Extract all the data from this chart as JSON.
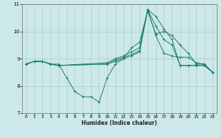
{
  "title": "",
  "xlabel": "Humidex (Indice chaleur)",
  "ylabel": "",
  "bg_color": "#cce8e8",
  "grid_color": "#aacccc",
  "line_color": "#1a7a6e",
  "xlim": [
    -0.5,
    23.5
  ],
  "ylim": [
    7,
    11
  ],
  "yticks": [
    7,
    8,
    9,
    10,
    11
  ],
  "xticks": [
    0,
    1,
    2,
    3,
    4,
    5,
    6,
    7,
    8,
    9,
    10,
    11,
    12,
    13,
    14,
    15,
    16,
    17,
    18,
    19,
    20,
    21,
    22,
    23
  ],
  "series": [
    {
      "x": [
        0,
        1,
        2,
        3,
        4,
        5,
        6,
        7,
        8,
        9,
        10,
        11,
        12,
        13,
        14,
        15,
        16,
        17,
        18,
        19,
        20,
        21,
        22,
        23
      ],
      "y": [
        8.8,
        8.9,
        8.9,
        8.8,
        8.8,
        8.3,
        7.8,
        7.6,
        7.6,
        7.4,
        8.3,
        8.8,
        9.0,
        9.4,
        9.6,
        10.75,
        9.9,
        10.0,
        9.85,
        9.5,
        9.2,
        8.8,
        8.8,
        8.5
      ]
    },
    {
      "x": [
        0,
        1,
        2,
        3,
        4,
        10,
        11,
        12,
        13,
        14,
        15,
        16,
        17,
        18,
        19,
        20,
        21,
        22,
        23
      ],
      "y": [
        8.8,
        8.9,
        8.9,
        8.8,
        8.75,
        8.85,
        9.0,
        9.1,
        9.25,
        9.4,
        10.8,
        9.85,
        9.2,
        9.1,
        9.05,
        9.05,
        8.85,
        8.8,
        8.5
      ]
    },
    {
      "x": [
        0,
        1,
        2,
        3,
        4,
        10,
        11,
        12,
        13,
        14,
        15,
        16,
        17,
        18,
        19,
        20,
        21,
        22,
        23
      ],
      "y": [
        8.8,
        8.9,
        8.9,
        8.8,
        8.75,
        8.8,
        8.95,
        9.05,
        9.15,
        9.3,
        10.8,
        10.2,
        9.7,
        9.5,
        8.75,
        8.75,
        8.75,
        8.75,
        8.5
      ]
    },
    {
      "x": [
        0,
        1,
        2,
        3,
        4,
        10,
        11,
        12,
        13,
        14,
        15,
        16,
        17,
        18,
        19,
        20,
        21,
        22,
        23
      ],
      "y": [
        8.8,
        8.9,
        8.9,
        8.8,
        8.75,
        8.8,
        8.9,
        9.0,
        9.1,
        9.25,
        10.8,
        10.55,
        10.1,
        9.7,
        8.75,
        8.75,
        8.75,
        8.75,
        8.5
      ]
    }
  ]
}
